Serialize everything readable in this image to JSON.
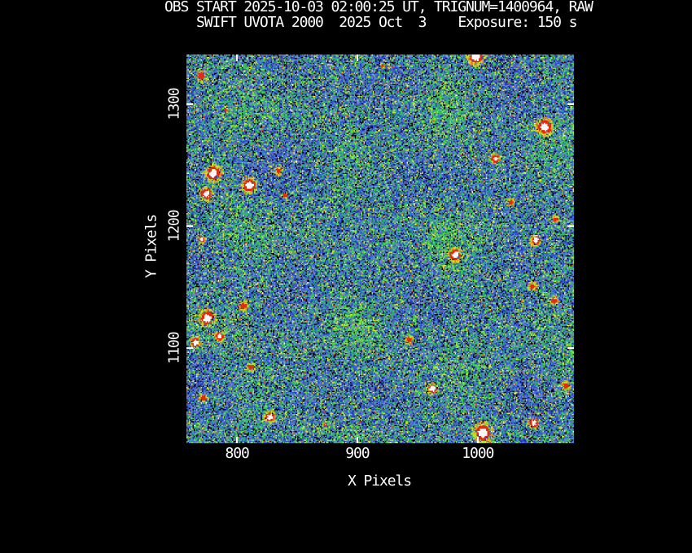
{
  "window": {
    "background": "#000000",
    "text_color": "#ffffff"
  },
  "chart_data": {
    "type": "heatmap",
    "title": "OBS START 2025-10-03 02:00:25 UT, TRIGNUM=1400964, RAW",
    "subtitle": "SWIFT UVOTA 2000  2025 Oct  3    Exposure: 150 s",
    "xlabel": "X Pixels",
    "ylabel": "Y Pixels",
    "xlim": [
      758,
      1080
    ],
    "ylim": [
      1022,
      1341
    ],
    "xticks": [
      {
        "value": 800,
        "label": "800"
      },
      {
        "value": 900,
        "label": "900"
      },
      {
        "value": 1000,
        "label": "1000"
      }
    ],
    "yticks": [
      {
        "value": 1100,
        "label": "1100"
      },
      {
        "value": 1200,
        "label": "1200"
      },
      {
        "value": 1300,
        "label": "1300"
      }
    ],
    "grid": false,
    "legend": false,
    "axis_color": "#ffffff",
    "image_description": "Raw UVOT detector noise field: speckled blue/teal/green background with black dropouts, sparse yellow pixels, and saturated point sources shown as white cores with red rims and orange/yellow-green halos.",
    "noise_seed": 1400964,
    "noise_palette": [
      {
        "color": "#000000",
        "weight": 0.085,
        "group": "other"
      },
      {
        "color": "#232347",
        "weight": 0.02,
        "group": "blue"
      },
      {
        "color": "#1f2fa8",
        "weight": 0.06,
        "group": "blue"
      },
      {
        "color": "#2e4fd2",
        "weight": 0.155,
        "group": "blue"
      },
      {
        "color": "#3a6ae0",
        "weight": 0.1,
        "group": "blue"
      },
      {
        "color": "#6e7fd2",
        "weight": 0.115,
        "group": "blue"
      },
      {
        "color": "#55639c",
        "weight": 0.05,
        "group": "blue"
      },
      {
        "color": "#2fa38c",
        "weight": 0.115,
        "group": "green"
      },
      {
        "color": "#2fb85e",
        "weight": 0.085,
        "group": "green"
      },
      {
        "color": "#3ecf3e",
        "weight": 0.065,
        "group": "green"
      },
      {
        "color": "#6ee83a",
        "weight": 0.045,
        "group": "green"
      },
      {
        "color": "#abe032",
        "weight": 0.03,
        "group": "green"
      },
      {
        "color": "#e5e02e",
        "weight": 0.04,
        "group": "other"
      },
      {
        "color": "#8a8a9a",
        "weight": 0.015,
        "group": "other"
      },
      {
        "color": "#b06a24",
        "weight": 0.008,
        "group": "other"
      },
      {
        "color": "#d2341a",
        "weight": 0.007,
        "group": "other"
      },
      {
        "color": "#f2f2f2",
        "weight": 0.005,
        "group": "other"
      }
    ],
    "source_colors": {
      "core": "#f7f7f7",
      "ring": "#e22c10",
      "halo": [
        "#e8871c",
        "#e8d21e",
        "#9ede2e"
      ]
    },
    "sources": [
      {
        "x": 770,
        "y": 1324,
        "r": 5,
        "type": "red"
      },
      {
        "x": 920,
        "y": 1332,
        "r": 2,
        "type": "red"
      },
      {
        "x": 998,
        "y": 1340,
        "r": 6,
        "type": "white"
      },
      {
        "x": 1055,
        "y": 1282,
        "r": 6,
        "type": "white"
      },
      {
        "x": 1014,
        "y": 1256,
        "r": 3.5,
        "type": "white"
      },
      {
        "x": 790,
        "y": 1296,
        "r": 2.5,
        "type": "red"
      },
      {
        "x": 780,
        "y": 1244,
        "r": 6,
        "type": "white"
      },
      {
        "x": 774,
        "y": 1227,
        "r": 5,
        "type": "white"
      },
      {
        "x": 810,
        "y": 1234,
        "r": 5.5,
        "type": "white"
      },
      {
        "x": 834,
        "y": 1246,
        "r": 3.5,
        "type": "red"
      },
      {
        "x": 839,
        "y": 1226,
        "r": 3,
        "type": "red"
      },
      {
        "x": 770,
        "y": 1190,
        "r": 3,
        "type": "white"
      },
      {
        "x": 1027,
        "y": 1220,
        "r": 3.5,
        "type": "red"
      },
      {
        "x": 1064,
        "y": 1206,
        "r": 3,
        "type": "red"
      },
      {
        "x": 1048,
        "y": 1189,
        "r": 4,
        "type": "white"
      },
      {
        "x": 981,
        "y": 1177,
        "r": 5,
        "type": "white"
      },
      {
        "x": 1045,
        "y": 1151,
        "r": 3.5,
        "type": "red"
      },
      {
        "x": 1063,
        "y": 1139,
        "r": 3.5,
        "type": "red"
      },
      {
        "x": 943,
        "y": 1107,
        "r": 3.5,
        "type": "red"
      },
      {
        "x": 775,
        "y": 1125,
        "r": 6,
        "type": "white"
      },
      {
        "x": 765,
        "y": 1105,
        "r": 4,
        "type": "white"
      },
      {
        "x": 785,
        "y": 1110,
        "r": 3.5,
        "type": "white"
      },
      {
        "x": 805,
        "y": 1135,
        "r": 4,
        "type": "red"
      },
      {
        "x": 811,
        "y": 1085,
        "r": 3.5,
        "type": "red"
      },
      {
        "x": 772,
        "y": 1059,
        "r": 3.5,
        "type": "red"
      },
      {
        "x": 827,
        "y": 1044,
        "r": 4,
        "type": "white"
      },
      {
        "x": 873,
        "y": 1037,
        "r": 2.5,
        "type": "red"
      },
      {
        "x": 962,
        "y": 1067,
        "r": 4,
        "type": "white"
      },
      {
        "x": 1073,
        "y": 1070,
        "r": 4,
        "type": "red"
      },
      {
        "x": 1046,
        "y": 1039,
        "r": 4,
        "type": "white"
      },
      {
        "x": 1004,
        "y": 1031,
        "r": 7,
        "type": "white"
      }
    ]
  }
}
